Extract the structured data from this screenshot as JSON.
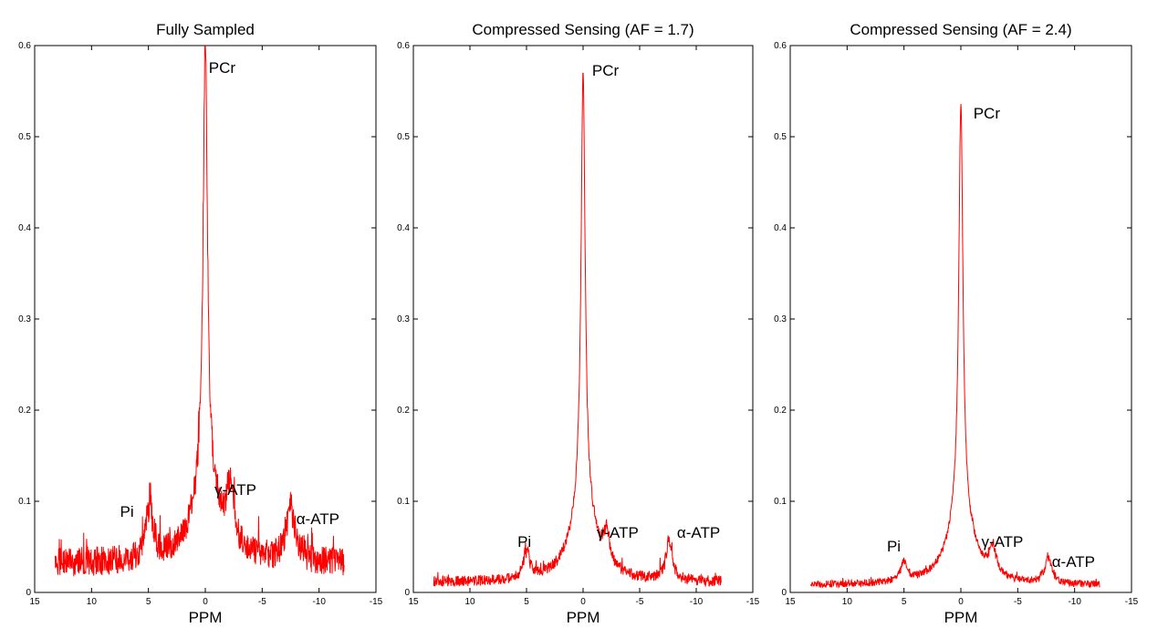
{
  "chart_data": [
    {
      "type": "line",
      "title": "Fully Sampled",
      "xlabel": "PPM",
      "ylabel": "",
      "xlim": [
        15,
        -15
      ],
      "ylim": [
        0,
        0.6
      ],
      "x_reversed": true,
      "xticks": [
        15,
        10,
        5,
        0,
        -5,
        -10,
        -15
      ],
      "yticks": [
        0,
        0.1,
        0.2,
        0.3,
        0.4,
        0.5,
        0.6
      ],
      "grid": false,
      "color": "#ff0000",
      "noise": {
        "amp": 0.032,
        "base": 0.016,
        "spikes": 0.03
      },
      "x_range": [
        13.2,
        -12.2
      ],
      "peaks": [
        {
          "label": "PCr",
          "ppm": 0,
          "height": 0.6,
          "width": 0.22,
          "label_x": -0.3,
          "label_y": 0.57
        },
        {
          "label": "Pi",
          "ppm": 4.9,
          "height": 0.07,
          "width": 0.4,
          "label_x": 7.5,
          "label_y": 0.083
        },
        {
          "label": "γ-ATP",
          "ppm": -2.2,
          "height": 0.07,
          "width": 0.5,
          "label_x": -0.8,
          "label_y": 0.107
        },
        {
          "label": "α-ATP",
          "ppm": -7.5,
          "height": 0.065,
          "width": 0.5,
          "label_x": -8.0,
          "label_y": 0.075
        }
      ]
    },
    {
      "type": "line",
      "title": "Compressed Sensing (AF = 1.7)",
      "xlabel": "PPM",
      "ylabel": "",
      "xlim": [
        15,
        -15
      ],
      "ylim": [
        0,
        0.6
      ],
      "x_reversed": true,
      "xticks": [
        15,
        10,
        5,
        0,
        -5,
        -10,
        -15
      ],
      "yticks": [
        0,
        0.1,
        0.2,
        0.3,
        0.4,
        0.5,
        0.6
      ],
      "grid": false,
      "color": "#ff0000",
      "noise": {
        "amp": 0.012,
        "base": 0.005,
        "spikes": 0.01
      },
      "x_range": [
        13.2,
        -12.2
      ],
      "peaks": [
        {
          "label": "PCr",
          "ppm": 0,
          "height": 0.58,
          "width": 0.22,
          "label_x": -0.8,
          "label_y": 0.567
        },
        {
          "label": "Pi",
          "ppm": 5.0,
          "height": 0.035,
          "width": 0.35,
          "label_x": 5.8,
          "label_y": 0.05
        },
        {
          "label": "γ-ATP",
          "ppm": -2.1,
          "height": 0.035,
          "width": 0.35,
          "label_x": -1.2,
          "label_y": 0.06
        },
        {
          "label": "α-ATP",
          "ppm": -7.6,
          "height": 0.05,
          "width": 0.35,
          "label_x": -8.3,
          "label_y": 0.06
        }
      ]
    },
    {
      "type": "line",
      "title": "Compressed Sensing (AF = 2.4)",
      "xlabel": "PPM",
      "ylabel": "",
      "xlim": [
        15,
        -15
      ],
      "ylim": [
        0,
        0.6
      ],
      "x_reversed": true,
      "xticks": [
        15,
        10,
        5,
        0,
        -5,
        -10,
        -15
      ],
      "yticks": [
        0,
        0.1,
        0.2,
        0.3,
        0.4,
        0.5,
        0.6
      ],
      "grid": false,
      "color": "#ff0000",
      "noise": {
        "amp": 0.008,
        "base": 0.004,
        "spikes": 0.006
      },
      "x_range": [
        13.2,
        -12.2
      ],
      "peaks": [
        {
          "label": "PCr",
          "ppm": 0,
          "height": 0.55,
          "width": 0.22,
          "label_x": -1.1,
          "label_y": 0.52
        },
        {
          "label": "Pi",
          "ppm": 5.0,
          "height": 0.025,
          "width": 0.35,
          "label_x": 6.5,
          "label_y": 0.045
        },
        {
          "label": "γ-ATP",
          "ppm": -2.8,
          "height": 0.035,
          "width": 0.35,
          "label_x": -1.8,
          "label_y": 0.05
        },
        {
          "label": "α-ATP",
          "ppm": -7.7,
          "height": 0.035,
          "width": 0.35,
          "label_x": -8.0,
          "label_y": 0.028
        }
      ]
    }
  ]
}
